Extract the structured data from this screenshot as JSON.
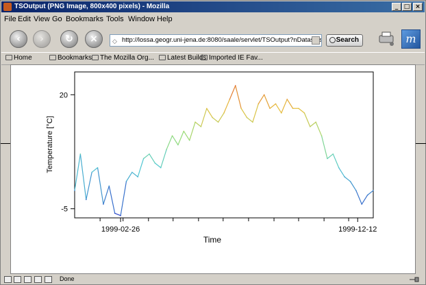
{
  "window": {
    "title": "TSOutput (PNG Image, 800x400 pixels) - Mozilla"
  },
  "menu": [
    "File",
    "Edit",
    "View",
    "Go",
    "Bookmarks",
    "Tools",
    "Window",
    "Help"
  ],
  "nav": {
    "url": "http://lossa.geogr.uni-jena.de:8080/saale/servlet/TSOutput?nDatasets",
    "search_label": "Search"
  },
  "bookmarks": [
    "Home",
    "Bookmarks",
    "The Mozilla Org...",
    "Latest Builds",
    "Imported IE Fav..."
  ],
  "status": {
    "text": "Done"
  },
  "chart_data": {
    "type": "line",
    "xlabel": "Time",
    "ylabel": "Temperature [°C]",
    "x_tick_labels": [
      "1999-02-26",
      "1999-12-12"
    ],
    "y_tick_labels": [
      "20",
      "-5"
    ],
    "ylim": [
      -7,
      25
    ],
    "x_range": [
      "1999-01-01",
      "1999-12-31"
    ],
    "color_scale": "blue (cold) to red (warm)",
    "series": [
      {
        "x": [
          "1999-01-01",
          "1999-01-08",
          "1999-01-15",
          "1999-01-22",
          "1999-01-29",
          "1999-02-05",
          "1999-02-12",
          "1999-02-19",
          "1999-02-26",
          "1999-03-05",
          "1999-03-12",
          "1999-03-19",
          "1999-03-26",
          "1999-04-02",
          "1999-04-09",
          "1999-04-16",
          "1999-04-23",
          "1999-04-30",
          "1999-05-07",
          "1999-05-14",
          "1999-05-21",
          "1999-05-28",
          "1999-06-04",
          "1999-06-11",
          "1999-06-18",
          "1999-06-25",
          "1999-07-02",
          "1999-07-09",
          "1999-07-16",
          "1999-07-23",
          "1999-07-30",
          "1999-08-06",
          "1999-08-13",
          "1999-08-20",
          "1999-08-27",
          "1999-09-03",
          "1999-09-10",
          "1999-09-17",
          "1999-09-24",
          "1999-10-01",
          "1999-10-08",
          "1999-10-15",
          "1999-10-22",
          "1999-10-29",
          "1999-11-05",
          "1999-11-12",
          "1999-11-19",
          "1999-11-26",
          "1999-12-03",
          "1999-12-10",
          "1999-12-17",
          "1999-12-24",
          "1999-12-31"
        ],
        "values": [
          -1,
          7,
          -3,
          3,
          4,
          -4,
          0,
          -6,
          -6.5,
          1,
          3,
          2,
          6,
          7,
          5,
          4,
          8,
          11,
          9,
          12,
          10,
          14,
          13,
          17,
          15,
          14,
          16,
          19,
          22,
          17,
          15,
          14,
          18,
          20,
          17,
          18,
          16,
          19,
          17,
          17,
          16,
          13,
          14,
          11,
          6,
          7,
          4,
          2,
          1,
          -1,
          -4,
          -2,
          -1
        ]
      }
    ]
  }
}
